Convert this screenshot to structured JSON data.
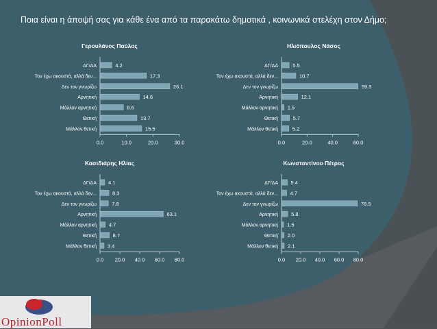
{
  "slide": {
    "title": "Ποια είναι η άποψή σας για κάθε ένα από τα παρακάτω δημοτικά , κοινωνικά στελέχη στον Δήμο;",
    "logo_text": "OpinionPoll"
  },
  "colors": {
    "background": "#3d5f6c",
    "bar": "#7fa6b5",
    "text": "#ffffff",
    "corner": "#4b5256"
  },
  "chart_data": [
    {
      "type": "bar",
      "orientation": "horizontal",
      "title": "Γερουλάνος Παύλος",
      "categories": [
        "ΔΓ/ΔΑ",
        "Τον έχω ακουστά, αλλά δεν...",
        "Δεν τον γνωρίζω",
        "Αρνητική",
        "Μάλλον αρνητική",
        "Θετική",
        "Μάλλον θετική"
      ],
      "values": [
        4.2,
        17.3,
        26.1,
        14.6,
        8.6,
        13.7,
        15.5
      ],
      "xlim": [
        0,
        30
      ],
      "ticks": [
        "0.0",
        "10.0",
        "20.0",
        "30.0"
      ],
      "grid": false
    },
    {
      "type": "bar",
      "orientation": "horizontal",
      "title": "Ηλιόπουλος Νάσος",
      "categories": [
        "ΔΓ/ΔΑ",
        "Τον έχω ακουστά, αλλά δεν...",
        "Δεν τον γνωρίζω",
        "Αρνητική",
        "Μάλλον αρνητική",
        "Θετική",
        "Μάλλον θετική"
      ],
      "values": [
        5.5,
        10.7,
        59.3,
        12.1,
        1.5,
        5.7,
        5.2
      ],
      "xlim": [
        0,
        60
      ],
      "ticks": [
        "0.0",
        "20.0",
        "40.0",
        "60.0"
      ],
      "grid": false
    },
    {
      "type": "bar",
      "orientation": "horizontal",
      "title": "Κασιδιάρης Ηλίας",
      "categories": [
        "ΔΓ/ΔΑ",
        "Τον έχω ακουστά, αλλά δεν...",
        "Δεν τον γνωρίζω",
        "Αρνητική",
        "Μάλλον αρνητική",
        "Θετική",
        "Μάλλον θετική"
      ],
      "values": [
        4.1,
        8.3,
        7.8,
        63.1,
        4.7,
        8.7,
        3.4
      ],
      "xlim": [
        0,
        80
      ],
      "ticks": [
        "0.0",
        "20.0",
        "40.0",
        "60.0",
        "80.0"
      ],
      "grid": false
    },
    {
      "type": "bar",
      "orientation": "horizontal",
      "title": "Κωνσταντίνου Πέτρος",
      "categories": [
        "ΔΓ/ΔΑ",
        "Τον έχω ακουστά, αλλά δεν...",
        "Δεν τον γνωρίζω",
        "Αρνητική",
        "Μάλλον αρνητική",
        "Θετική",
        "Μάλλον θετική"
      ],
      "values": [
        5.4,
        4.7,
        78.5,
        5.8,
        1.5,
        2.0,
        2.1
      ],
      "xlim": [
        0,
        80
      ],
      "ticks": [
        "0.0",
        "20.0",
        "40.0",
        "60.0",
        "80.0"
      ],
      "grid": false
    }
  ]
}
